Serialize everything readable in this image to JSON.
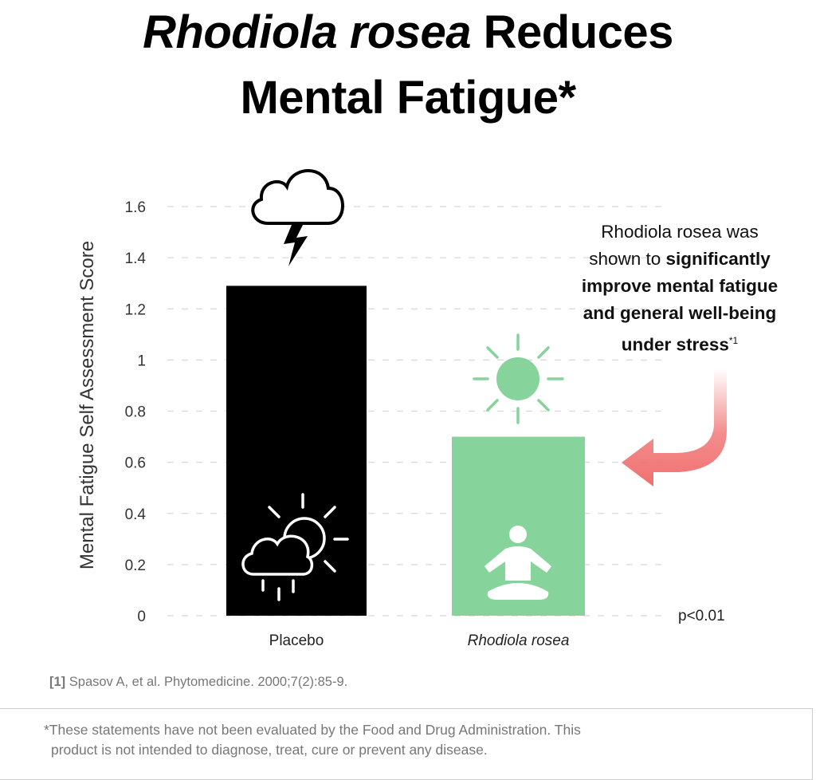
{
  "title": {
    "italic": "Rhodiola rosea",
    "line1_rest": " Reduces",
    "line2": "Mental Fatigue*"
  },
  "chart_data": {
    "type": "bar",
    "categories": [
      "Placebo",
      "Rhodiola rosea"
    ],
    "values": [
      1.29,
      0.7
    ],
    "ylabel": "Mental Fatigue Self Assessment Score",
    "xlabel": "",
    "ylim": [
      0,
      1.6
    ],
    "yticks": [
      "0",
      "0.2",
      "0.4",
      "0.6",
      "0.8",
      "1",
      "1.2",
      "1.4",
      "1.6"
    ],
    "grid": "horizontal dashed",
    "bar_colors": [
      "#000000",
      "#86d49b"
    ],
    "annotation": "p<0.01"
  },
  "callout": {
    "line1": "Rhodiola rosea was",
    "line2_plain": "shown to ",
    "line2_bold": "significantly",
    "line3": "improve mental fatigue",
    "line4": "and general well-being",
    "line5": "under stress",
    "line5_sup": "*1"
  },
  "icons": [
    "cloud-lightning-icon",
    "sun-cloud-rain-icon",
    "sun-icon",
    "meditation-icon",
    "curved-arrow-icon"
  ],
  "colors": {
    "arrow": "#f07070",
    "green": "#86d49b"
  },
  "reference": {
    "marker": "[1]",
    "text": " Spasov A, et al. Phytomedicine. 2000;7(2):85-9."
  },
  "disclaimer": {
    "line1": "*These statements have not been evaluated by the Food and Drug Administration. This",
    "line2": "product is not intended to diagnose, treat, cure or prevent any disease."
  }
}
